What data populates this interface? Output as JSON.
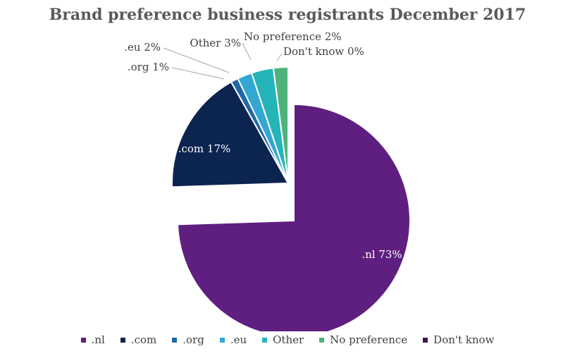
{
  "chart_data": {
    "type": "pie",
    "title": "Brand preference business registrants December 2017",
    "slices": [
      {
        "key": "nl",
        "name": ".nl",
        "label": ".nl 73%",
        "value": 73,
        "color": "#5f1f80"
      },
      {
        "key": "com",
        "name": ".com",
        "label": ".com 17%",
        "value": 17,
        "color": "#0c2450"
      },
      {
        "key": "org",
        "name": ".org",
        "label": ".org 1%",
        "value": 1,
        "color": "#1c69a6"
      },
      {
        "key": "eu",
        "name": ".eu",
        "label": ".eu 2%",
        "value": 2,
        "color": "#33a7d1"
      },
      {
        "key": "other",
        "name": "Other",
        "label": "Other 3%",
        "value": 3,
        "color": "#25b5b8"
      },
      {
        "key": "no-preference",
        "name": "No preference",
        "label": "No preference 2%",
        "value": 2,
        "color": "#4fb27a"
      },
      {
        "key": "dont-know",
        "name": "Don't know",
        "label": "Don't know 0%",
        "value": 0,
        "color": "#3d1552"
      }
    ],
    "legend_position": "bottom"
  }
}
